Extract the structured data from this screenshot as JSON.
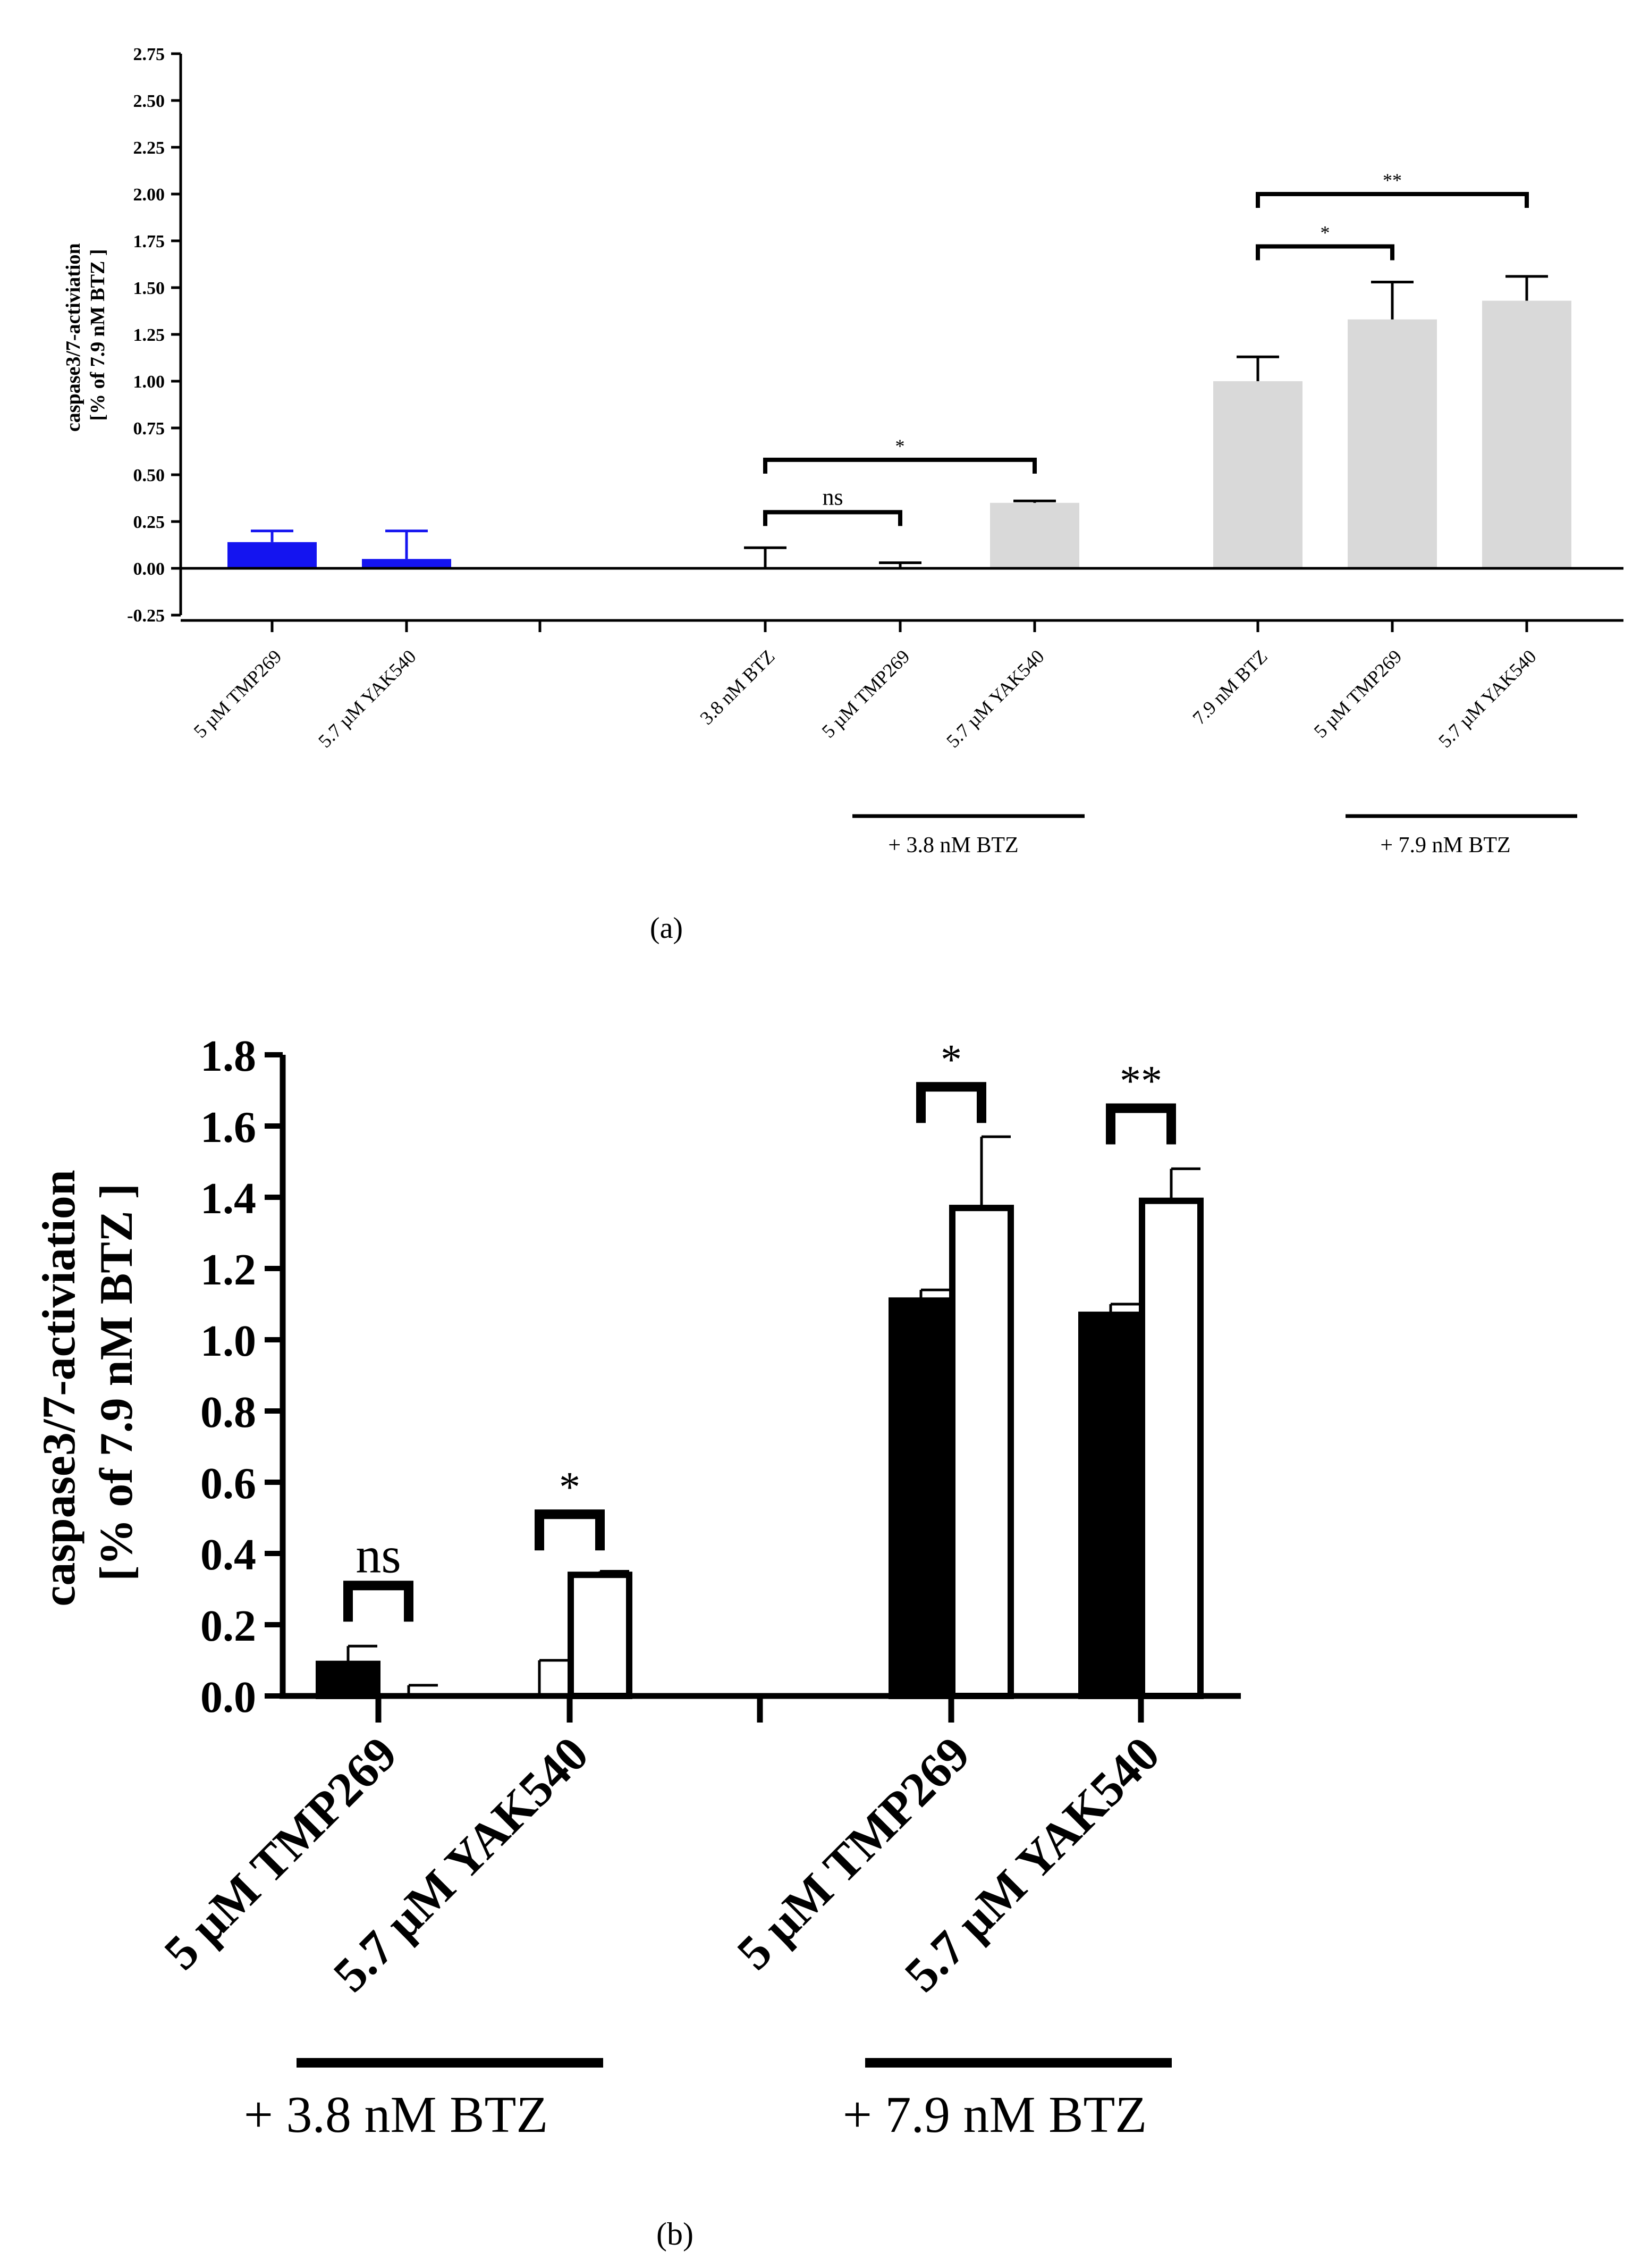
{
  "chart_data": [
    {
      "type": "bar",
      "panel_label": "(a)",
      "ylabel_lines": [
        "caspase3/7-activiation",
        "[% of 7.9 nM BTZ ]"
      ],
      "ylim": [
        -0.25,
        2.75
      ],
      "yticks": [
        "2.75",
        "2.50",
        "2.25",
        "2.00",
        "1.75",
        "1.50",
        "1.25",
        "1.00",
        "0.75",
        "0.50",
        "0.25",
        "0.00",
        "-0.25"
      ],
      "ytick_values": [
        2.75,
        2.5,
        2.25,
        2.0,
        1.75,
        1.5,
        1.25,
        1.0,
        0.75,
        0.5,
        0.25,
        0.0,
        -0.25
      ],
      "categories": [
        "5 µM TMP269",
        "5.7 µM YAK540",
        "3.8 nM BTZ",
        "5 µM TMP269",
        "5.7 µM YAK540",
        "7.9 nM BTZ",
        "5 µM TMP269",
        "5.7 µM YAK540"
      ],
      "values": [
        0.14,
        0.05,
        0.0,
        0.0,
        0.35,
        1.0,
        1.33,
        1.43
      ],
      "errors": [
        0.06,
        0.15,
        0.11,
        0.03,
        0.01,
        0.13,
        0.2,
        0.13
      ],
      "bar_colors": [
        "#1414f0",
        "#1414f0",
        "#d9d9d9",
        "#d9d9d9",
        "#d9d9d9",
        "#d9d9d9",
        "#d9d9d9",
        "#d9d9d9"
      ],
      "groups": [
        "+ 3.8 nM BTZ",
        "+ 7.9 nM BTZ"
      ],
      "significance": [
        {
          "from": 2,
          "to": 3,
          "label": "ns",
          "y": 0.3
        },
        {
          "from": 2,
          "to": 4,
          "label": "*",
          "y": 0.58
        },
        {
          "from": 5,
          "to": 6,
          "label": "*",
          "y": 1.72
        },
        {
          "from": 5,
          "to": 7,
          "label": "**",
          "y": 2.0
        }
      ]
    },
    {
      "type": "bar",
      "panel_label": "(b)",
      "ylabel_lines": [
        "caspase3/7-activiation",
        "[% of 7.9 nM BTZ ]"
      ],
      "ylim": [
        0,
        1.8
      ],
      "yticks": [
        "1.8",
        "1.6",
        "1.4",
        "1.2",
        "1.0",
        "0.8",
        "0.6",
        "0.4",
        "0.2",
        "0.0"
      ],
      "ytick_values": [
        1.8,
        1.6,
        1.4,
        1.2,
        1.0,
        0.8,
        0.6,
        0.4,
        0.2,
        0.0
      ],
      "categories": [
        "5 µM TMP269",
        "5.7 µM YAK540",
        "5 µM TMP269",
        "5.7 µM YAK540"
      ],
      "series": [
        {
          "fill": "#000000",
          "values": [
            0.09,
            0.0,
            1.11,
            1.07
          ],
          "errors": [
            0.05,
            0.1,
            0.03,
            0.03
          ]
        },
        {
          "fill": "#ffffff",
          "values": [
            0.0,
            0.34,
            1.37,
            1.39
          ],
          "errors": [
            0.03,
            0.01,
            0.2,
            0.09
          ]
        }
      ],
      "groups": [
        "+ 3.8 nM BTZ",
        "+ 7.9 nM BTZ"
      ],
      "significance": [
        {
          "category": 0,
          "label": "ns",
          "y": 0.31
        },
        {
          "category": 1,
          "label": "*",
          "y": 0.51
        },
        {
          "category": 2,
          "label": "*",
          "y": 1.71
        },
        {
          "category": 3,
          "label": "**",
          "y": 1.65
        }
      ]
    }
  ]
}
